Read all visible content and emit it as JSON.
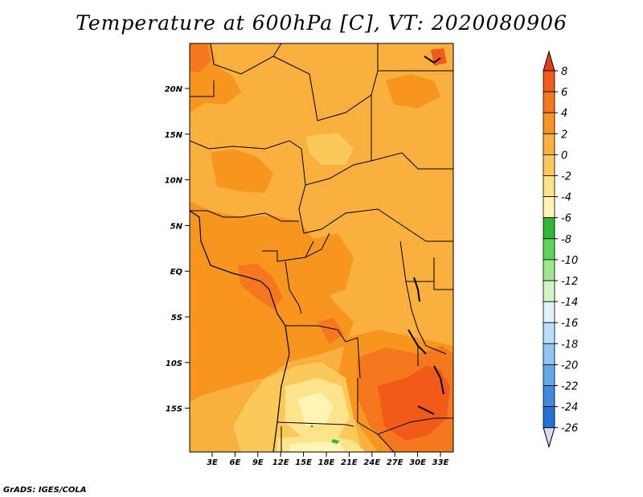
{
  "title": "Temperature at 600hPa [C], VT: 2020080906",
  "credit": "GrADS: IGES/COLA",
  "map": {
    "y_ticks": [
      "20N",
      "15N",
      "10N",
      "5N",
      "EQ",
      "5S",
      "10S",
      "15S"
    ],
    "x_ticks": [
      "3E",
      "6E",
      "9E",
      "12E",
      "15E",
      "18E",
      "21E",
      "24E",
      "27E",
      "30E",
      "33E"
    ]
  },
  "colorbar": {
    "labels": [
      "8",
      "6",
      "4",
      "2",
      "0",
      "-2",
      "-4",
      "-6",
      "-8",
      "-10",
      "-12",
      "-14",
      "-16",
      "-18",
      "-20",
      "-22",
      "-24",
      "-26"
    ],
    "colors": [
      "#e63c18",
      "#f25a1a",
      "#f5781e",
      "#f7961f",
      "#f9b03e",
      "#fbc95a",
      "#fde389",
      "#fff4b6",
      "#2fb936",
      "#5fd35e",
      "#9ee690",
      "#d1f5c5",
      "#dff2fb",
      "#b8e0fa",
      "#8fc6f4",
      "#63a8eb",
      "#3f8be2",
      "#2472d8",
      "#1a5ccc",
      "#1a3fb4",
      "#1e2e96",
      "#1b1a72",
      "#d8d8f2"
    ]
  }
}
